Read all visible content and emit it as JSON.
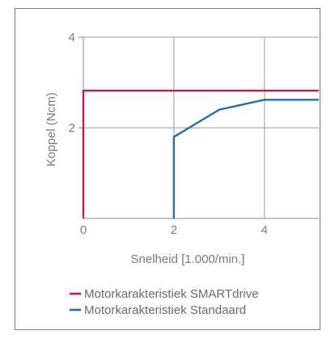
{
  "chart_data": {
    "type": "line",
    "xlabel": "Snelheid [1.000/min.]",
    "ylabel": "Koppel (Ncm)",
    "xlim": [
      0,
      5.2
    ],
    "ylim": [
      0,
      4
    ],
    "x_ticks": [
      "0",
      "2",
      "4"
    ],
    "y_ticks": [
      "2",
      "4"
    ],
    "x_gridlines": [
      2,
      4
    ],
    "y_gridlines": [
      2
    ],
    "grid": true,
    "legend_position": "bottom",
    "series": [
      {
        "name": "Motorkarakteristiek SMARTdrive",
        "color": "#c8174a",
        "x": [
          0,
          0,
          5.2
        ],
        "y": [
          0,
          2.82,
          2.82
        ]
      },
      {
        "name": "Motorkarakteristiek Standaard",
        "color": "#2a6aa8",
        "x": [
          2,
          2,
          3,
          4,
          5.2
        ],
        "y": [
          0,
          1.8,
          2.4,
          2.62,
          2.62
        ]
      }
    ]
  }
}
